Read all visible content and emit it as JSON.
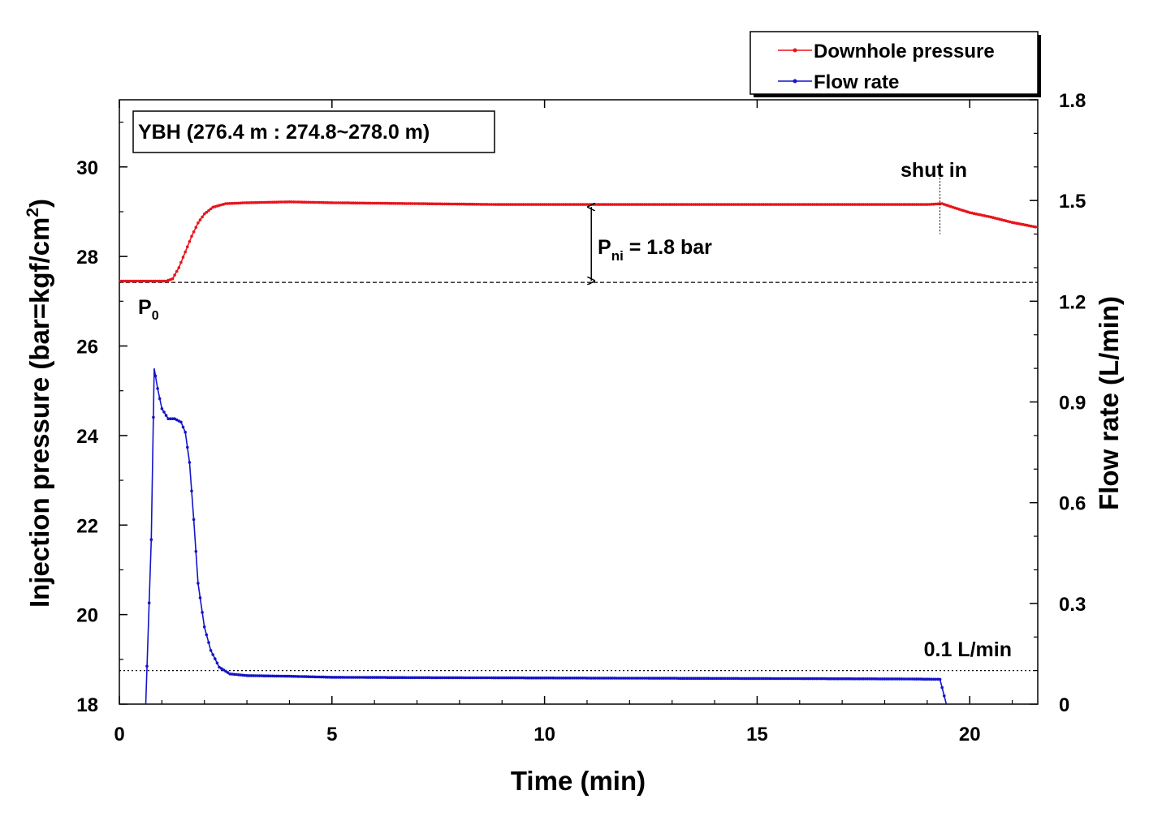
{
  "chart_data": {
    "type": "line",
    "xlabel": "Time (min)",
    "ylabel_left": "Injection pressure (bar=kgf/cm²)",
    "ylabel_left_main": "Injection pressure (bar=kgf/cm",
    "ylabel_left_sup": "2",
    "ylabel_left_close": ")",
    "ylabel_right": "Flow rate (L/min)",
    "xlim": [
      0,
      21.6
    ],
    "ylim_left": [
      18,
      31.5
    ],
    "ylim_right": [
      0,
      1.8
    ],
    "x_ticks": [
      0,
      5,
      10,
      15,
      20
    ],
    "x_tick_labels": [
      "0",
      "5",
      "10",
      "15",
      "20"
    ],
    "y_left_ticks": [
      18,
      20,
      22,
      24,
      26,
      28,
      30
    ],
    "y_left_tick_labels": [
      "18",
      "20",
      "22",
      "24",
      "26",
      "28",
      "30"
    ],
    "y_right_ticks": [
      0,
      0.3,
      0.6,
      0.9,
      1.2,
      1.5,
      1.8
    ],
    "y_right_tick_labels": [
      "0",
      "0.3",
      "0.6",
      "0.9",
      "1.2",
      "1.5",
      "1.8"
    ],
    "series": [
      {
        "name": "Downhole pressure",
        "axis": "left",
        "color": "#e8141b",
        "points": [
          [
            0,
            27.45
          ],
          [
            0.8,
            27.45
          ],
          [
            1.1,
            27.45
          ],
          [
            1.25,
            27.5
          ],
          [
            1.4,
            27.75
          ],
          [
            1.55,
            28.1
          ],
          [
            1.7,
            28.45
          ],
          [
            1.85,
            28.75
          ],
          [
            2.0,
            28.95
          ],
          [
            2.2,
            29.1
          ],
          [
            2.5,
            29.18
          ],
          [
            3.0,
            29.2
          ],
          [
            3.5,
            29.21
          ],
          [
            4.0,
            29.22
          ],
          [
            4.5,
            29.21
          ],
          [
            5.0,
            29.2
          ],
          [
            6.0,
            29.19
          ],
          [
            7.0,
            29.18
          ],
          [
            8.0,
            29.17
          ],
          [
            9.0,
            29.16
          ],
          [
            10.0,
            29.16
          ],
          [
            11.0,
            29.16
          ],
          [
            12.0,
            29.16
          ],
          [
            13.0,
            29.16
          ],
          [
            14.0,
            29.16
          ],
          [
            15.0,
            29.16
          ],
          [
            16.0,
            29.16
          ],
          [
            17.0,
            29.16
          ],
          [
            18.0,
            29.16
          ],
          [
            19.0,
            29.16
          ],
          [
            19.35,
            29.18
          ],
          [
            19.6,
            29.1
          ],
          [
            20.0,
            28.98
          ],
          [
            20.5,
            28.88
          ],
          [
            21.0,
            28.76
          ],
          [
            21.6,
            28.65
          ]
        ]
      },
      {
        "name": "Flow rate",
        "axis": "right",
        "color": "#1414c8",
        "points": [
          [
            0,
            0
          ],
          [
            0.62,
            0
          ],
          [
            0.75,
            0.49
          ],
          [
            0.82,
            1.0
          ],
          [
            0.9,
            0.94
          ],
          [
            1.0,
            0.88
          ],
          [
            1.15,
            0.85
          ],
          [
            1.3,
            0.85
          ],
          [
            1.45,
            0.84
          ],
          [
            1.55,
            0.81
          ],
          [
            1.65,
            0.72
          ],
          [
            1.75,
            0.55
          ],
          [
            1.85,
            0.36
          ],
          [
            2.0,
            0.23
          ],
          [
            2.15,
            0.16
          ],
          [
            2.35,
            0.11
          ],
          [
            2.6,
            0.09
          ],
          [
            3.0,
            0.085
          ],
          [
            4.0,
            0.083
          ],
          [
            5.0,
            0.08
          ],
          [
            7.0,
            0.079
          ],
          [
            10.0,
            0.078
          ],
          [
            13.0,
            0.077
          ],
          [
            16.0,
            0.076
          ],
          [
            18.5,
            0.075
          ],
          [
            19.3,
            0.074
          ],
          [
            19.45,
            0
          ],
          [
            21.6,
            0
          ]
        ]
      }
    ],
    "reference_lines": [
      {
        "axis": "left",
        "value": 27.42,
        "style": "dashed"
      },
      {
        "axis": "right",
        "value": 0.1,
        "style": "dotted"
      }
    ],
    "shut_in_time": 19.3,
    "legend_position": "top-right",
    "annotations": {
      "box_label": "YBH (276.4 m : 274.8~278.0 m)",
      "p0_main": "P",
      "p0_sub": "0",
      "pni_main": "P",
      "pni_sub": "ni",
      "pni_value": " = 1.8 bar",
      "pni_time": 11.1,
      "pni_top": 29.16,
      "pni_bottom": 27.42,
      "shut_in_label": "shut in",
      "flow_threshold_label": "0.1 L/min"
    },
    "legend": [
      {
        "label": "Downhole pressure",
        "color": "#e8141b"
      },
      {
        "label": "Flow rate",
        "color": "#1414c8"
      }
    ]
  }
}
